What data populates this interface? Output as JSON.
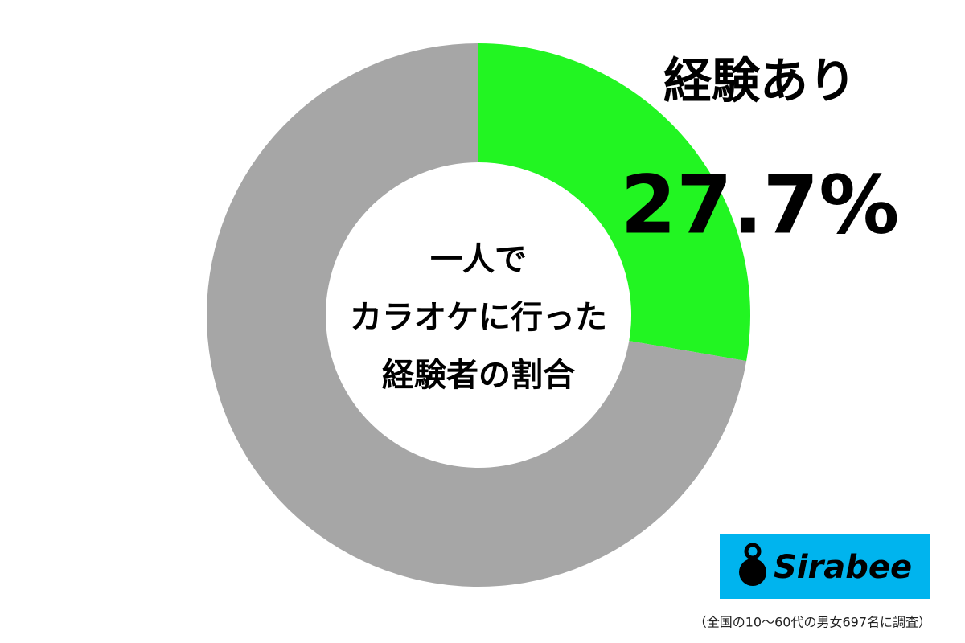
{
  "chart_data": {
    "type": "donut",
    "categories": [
      "経験あり",
      null
    ],
    "values": [
      27.7,
      72.3
    ],
    "value_labels": [
      "27.7%",
      null
    ],
    "colors": [
      "#22f522",
      "#a6a6a6"
    ],
    "center_label": [
      "一人で",
      "カラオケに行った",
      "経験者の割合"
    ],
    "note": "（全国の10〜60代の男女697名に調査）"
  },
  "logo": "Sirabee"
}
